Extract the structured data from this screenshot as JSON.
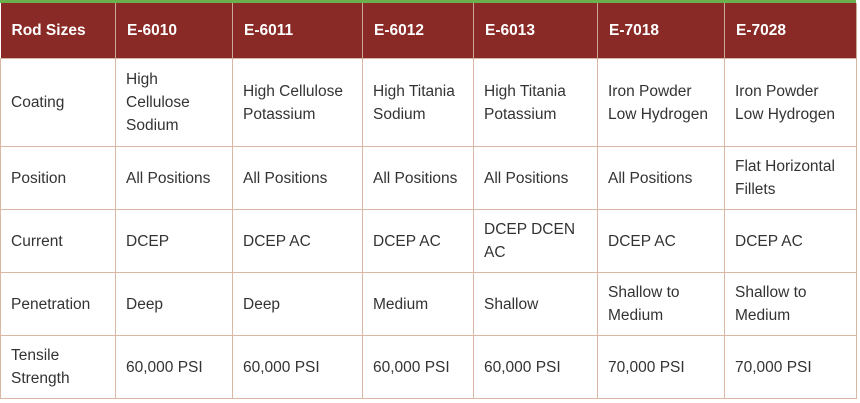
{
  "table": {
    "header": [
      "Rod Sizes",
      "E-6010",
      "E-6011",
      "E-6012",
      "E-6013",
      "E-7018",
      "E-7028"
    ],
    "rows": [
      [
        "Coating",
        "High Cellulose Sodium",
        "High Cellulose Potassium",
        "High Titania Sodium",
        "High Titania Potassium",
        "Iron Powder Low Hydrogen",
        "Iron Powder Low Hydrogen"
      ],
      [
        "Position",
        "All Positions",
        "All Positions",
        "All Positions",
        "All Positions",
        "All Positions",
        "Flat Horizontal Fillets"
      ],
      [
        "Current",
        "DCEP",
        "DCEP AC",
        "DCEP AC",
        "DCEP DCEN AC",
        "DCEP AC",
        "DCEP AC"
      ],
      [
        "Penetration",
        "Deep",
        "Deep",
        "Medium",
        "Shallow",
        "Shallow to Medium",
        "Shallow to Medium"
      ],
      [
        "Tensile Strength",
        "60,000 PSI",
        "60,000 PSI",
        "60,000 PSI",
        "60,000 PSI",
        "70,000 PSI",
        "70,000 PSI"
      ]
    ]
  }
}
